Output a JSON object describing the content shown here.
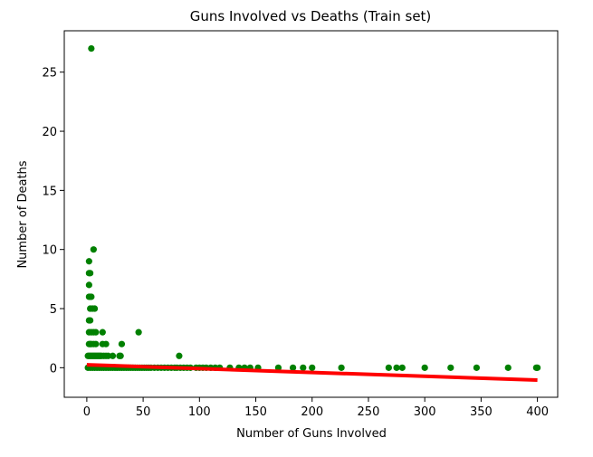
{
  "chart_data": {
    "type": "scatter",
    "title": "Guns Involved vs Deaths (Train set)",
    "xlabel": "Number of Guns Involved",
    "ylabel": "Number of Deaths",
    "xlim": [
      -20,
      418
    ],
    "ylim": [
      -2.5,
      28.5
    ],
    "xticks": [
      0,
      50,
      100,
      150,
      200,
      250,
      300,
      350,
      400
    ],
    "yticks": [
      0,
      5,
      10,
      15,
      20,
      25
    ],
    "grid": false,
    "colors": {
      "points": "#008000",
      "line": "#ff0000",
      "axes": "#000000"
    },
    "series": [
      {
        "kind": "scatter",
        "points": [
          [
            4,
            27
          ],
          [
            6,
            10
          ],
          [
            2,
            9
          ],
          [
            2,
            8
          ],
          [
            3,
            8
          ],
          [
            2,
            7
          ],
          [
            2,
            6
          ],
          [
            3,
            6
          ],
          [
            4,
            6
          ],
          [
            3,
            5
          ],
          [
            5,
            5
          ],
          [
            7,
            5
          ],
          [
            2,
            4
          ],
          [
            3,
            4
          ],
          [
            2,
            3
          ],
          [
            4,
            3
          ],
          [
            6,
            3
          ],
          [
            8,
            3
          ],
          [
            14,
            3
          ],
          [
            46,
            3
          ],
          [
            2,
            2
          ],
          [
            3,
            2
          ],
          [
            4,
            2
          ],
          [
            6,
            2
          ],
          [
            8,
            2
          ],
          [
            14,
            2
          ],
          [
            17,
            2
          ],
          [
            31,
            2
          ],
          [
            1,
            1
          ],
          [
            2,
            1
          ],
          [
            3,
            1
          ],
          [
            4,
            1
          ],
          [
            5,
            1
          ],
          [
            6,
            1
          ],
          [
            7,
            1
          ],
          [
            8,
            1
          ],
          [
            9,
            1
          ],
          [
            10,
            1
          ],
          [
            11,
            1
          ],
          [
            12,
            1
          ],
          [
            13,
            1
          ],
          [
            15,
            1
          ],
          [
            17,
            1
          ],
          [
            19,
            1
          ],
          [
            23,
            1
          ],
          [
            29,
            1
          ],
          [
            30,
            1
          ],
          [
            82,
            1
          ],
          [
            1,
            0
          ],
          [
            3,
            0
          ],
          [
            5,
            0
          ],
          [
            7,
            0
          ],
          [
            9,
            0
          ],
          [
            11,
            0
          ],
          [
            13,
            0
          ],
          [
            15,
            0
          ],
          [
            17,
            0
          ],
          [
            19,
            0
          ],
          [
            21,
            0
          ],
          [
            23,
            0
          ],
          [
            25,
            0
          ],
          [
            27,
            0
          ],
          [
            29,
            0
          ],
          [
            31,
            0
          ],
          [
            33,
            0
          ],
          [
            35,
            0
          ],
          [
            37,
            0
          ],
          [
            39,
            0
          ],
          [
            41,
            0
          ],
          [
            43,
            0
          ],
          [
            45,
            0
          ],
          [
            47,
            0
          ],
          [
            49,
            0
          ],
          [
            51,
            0
          ],
          [
            53,
            0
          ],
          [
            55,
            0
          ],
          [
            57,
            0
          ],
          [
            60,
            0
          ],
          [
            63,
            0
          ],
          [
            66,
            0
          ],
          [
            69,
            0
          ],
          [
            72,
            0
          ],
          [
            75,
            0
          ],
          [
            78,
            0
          ],
          [
            80,
            0
          ],
          [
            83,
            0
          ],
          [
            86,
            0
          ],
          [
            89,
            0
          ],
          [
            92,
            0
          ],
          [
            97,
            0
          ],
          [
            100,
            0
          ],
          [
            103,
            0
          ],
          [
            106,
            0
          ],
          [
            110,
            0
          ],
          [
            114,
            0
          ],
          [
            118,
            0
          ],
          [
            127,
            0
          ],
          [
            135,
            0
          ],
          [
            140,
            0
          ],
          [
            145,
            0
          ],
          [
            152,
            0
          ],
          [
            170,
            0
          ],
          [
            183,
            0
          ],
          [
            192,
            0
          ],
          [
            200,
            0
          ],
          [
            226,
            0
          ],
          [
            268,
            0
          ],
          [
            275,
            0
          ],
          [
            280,
            0
          ],
          [
            300,
            0
          ],
          [
            323,
            0
          ],
          [
            346,
            0
          ],
          [
            374,
            0
          ],
          [
            399,
            0
          ],
          [
            400,
            0
          ]
        ]
      },
      {
        "kind": "line",
        "x": [
          0,
          400
        ],
        "y": [
          0.25,
          -1.05
        ]
      }
    ]
  }
}
